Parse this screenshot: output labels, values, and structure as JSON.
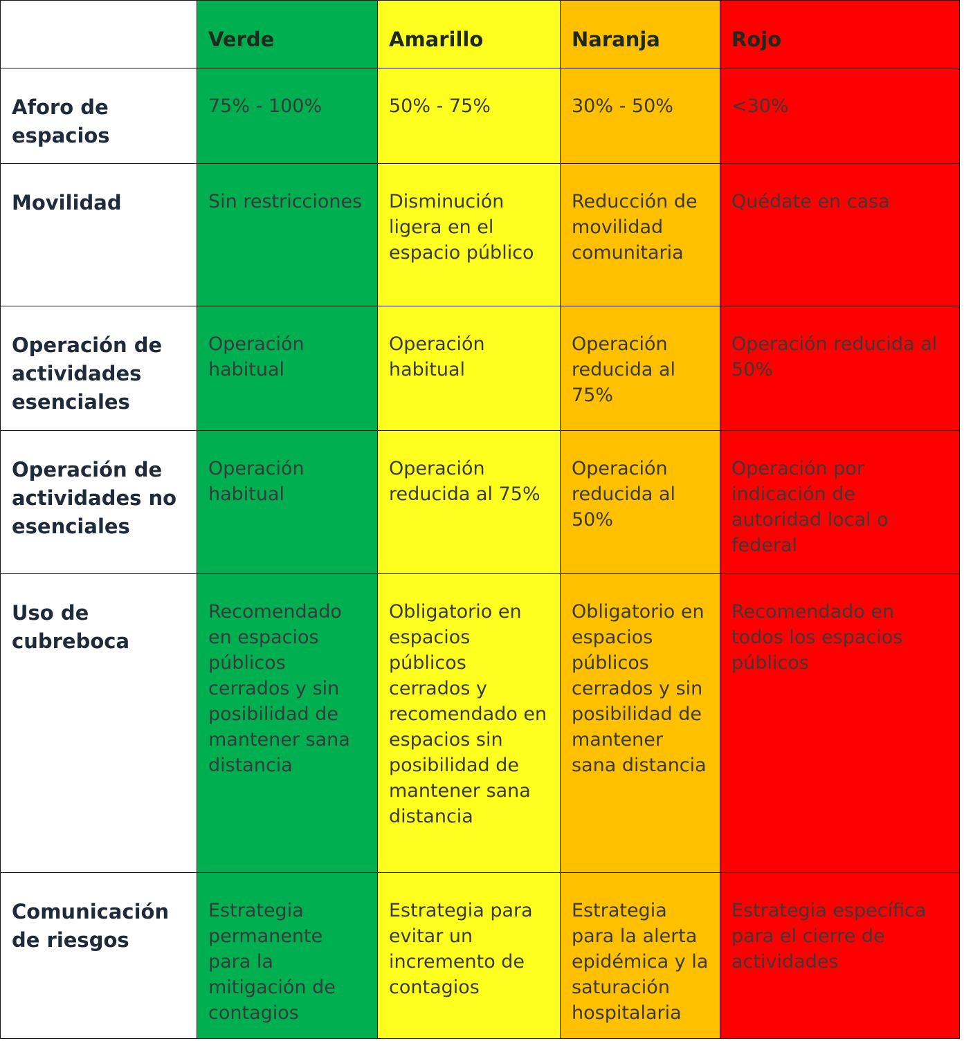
{
  "table": {
    "header": [
      "Verde",
      "Amarillo",
      "Naranja",
      "Rojo"
    ],
    "rows": [
      {
        "label": "Aforo de espacios",
        "cells": [
          "75% - 100%",
          "50% - 75%",
          "30% - 50%",
          "<30%"
        ]
      },
      {
        "label": "Movilidad",
        "cells": [
          "Sin restricciones",
          "Disminución ligera en el espacio público",
          "Reducción de movilidad comunitaria",
          "Quédate en casa"
        ]
      },
      {
        "label": "Operación de actividades esenciales",
        "cells": [
          "Operación habitual",
          "Operación habitual",
          "Operación reducida al 75%",
          "Operación reducida al 50%"
        ]
      },
      {
        "label": "Operación de actividades no esenciales",
        "cells": [
          "Operación habitual",
          "Operación reducida al 75%",
          "Operación reducida al 50%",
          "Operación por indicación de autoridad local o federal"
        ]
      },
      {
        "label": "Uso de cubreboca",
        "cells": [
          "Recomendado en espacios públicos cerrados y sin posibilidad de mantener sana distancia",
          "Obligatorio en espacios públicos cerrados y recomendado en espacios sin posibilidad de mantener sana distancia",
          "Obligatorio en espacios públicos cerrados y sin posibilidad de mantener sana distancia",
          "Recomendado en todos los espacios públicos"
        ]
      },
      {
        "label": "Comunicación de riesgos",
        "cells": [
          "Estrategia permanente para la mitigación de contagios",
          "Estrategia para evitar un incremento de contagios",
          "Estrategia para la alerta epidémica y la saturación hospitalaria",
          "Estrategia específica para el cierre de actividades"
        ]
      }
    ]
  }
}
